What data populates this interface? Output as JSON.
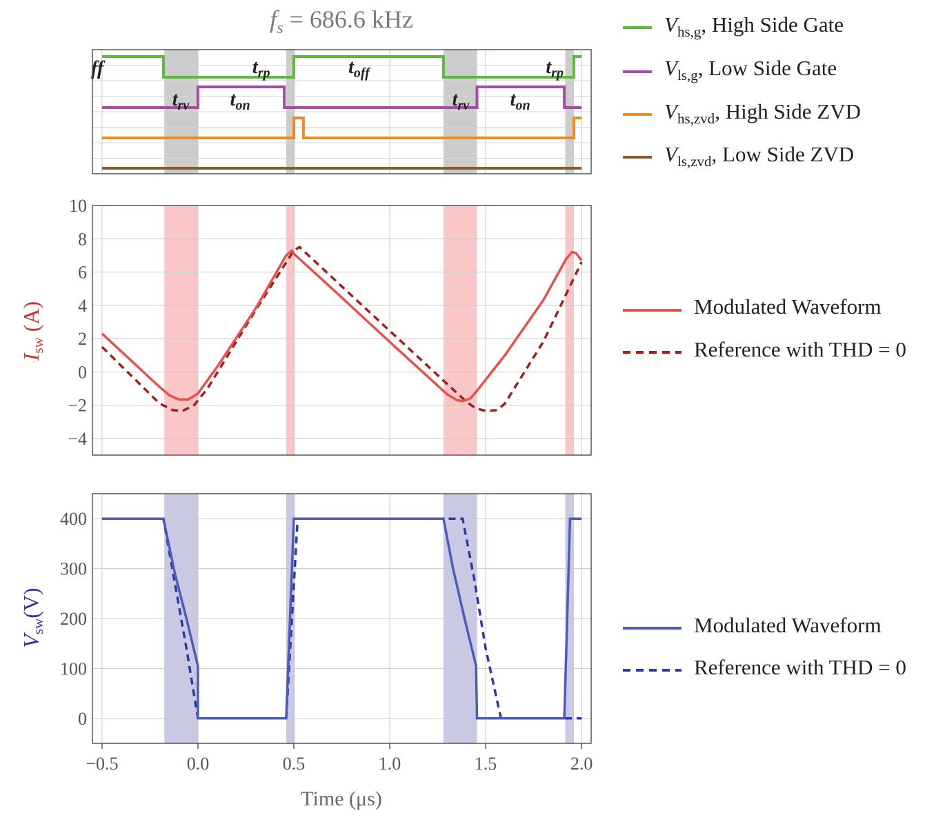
{
  "title": {
    "var": "f",
    "sub": "s",
    "rest": " = 686.6 kHz"
  },
  "colors": {
    "hs_gate": "#5dbb3c",
    "ls_gate": "#a64ca6",
    "hs_zvd": "#f08a24",
    "ls_zvd": "#8b5a2b",
    "current": "#e8504a",
    "current_ref": "#a0201c",
    "voltage": "#4c5cb8",
    "voltage_ref": "#2b3aa8",
    "gray_band": "#cccccc",
    "red_band": "#f9c7c7",
    "blue_band": "#c9c9e3"
  },
  "gate_panel": {
    "labels": [
      {
        "main": "t",
        "sub": "rv",
        "x": -0.09,
        "row": "ls"
      },
      {
        "main": "t",
        "sub": "on",
        "x": 0.22,
        "row": "ls"
      },
      {
        "main": "t",
        "sub": "rp",
        "x": 0.33,
        "row": "hs"
      },
      {
        "main": "t",
        "sub": "off",
        "x": 0.84,
        "row": "hs"
      },
      {
        "main": "t",
        "sub": "rv",
        "x": 1.37,
        "row": "ls"
      },
      {
        "main": "t",
        "sub": "on",
        "x": 1.68,
        "row": "ls"
      },
      {
        "main": "t",
        "sub": "rp",
        "x": 1.86,
        "row": "hs"
      }
    ],
    "clipped_label": "ff"
  },
  "chart_data": [
    {
      "type": "line",
      "name": "gate_signals",
      "xlim": [
        -0.55,
        2.05
      ],
      "shaded_intervals": [
        [
          -0.175,
          0.0
        ],
        [
          0.46,
          0.505
        ],
        [
          1.28,
          1.455
        ],
        [
          1.915,
          1.96
        ]
      ],
      "series": [
        {
          "name": "V_hs,g, High Side Gate",
          "level_high": 1,
          "x": [
            -0.5,
            -0.18,
            -0.18,
            0.5,
            0.5,
            1.28,
            1.28,
            1.96,
            1.96,
            2.0
          ],
          "y": [
            1,
            1,
            0,
            0,
            1,
            1,
            0,
            0,
            1,
            1
          ]
        },
        {
          "name": "V_ls,g, Low Side Gate",
          "x": [
            -0.5,
            0.0,
            0.0,
            0.45,
            0.45,
            1.455,
            1.455,
            1.91,
            1.91,
            2.0
          ],
          "y": [
            0,
            0,
            1,
            1,
            0,
            0,
            1,
            1,
            0,
            0
          ]
        },
        {
          "name": "V_hs,zvd, High Side ZVD",
          "x": [
            -0.5,
            0.5,
            0.5,
            0.55,
            0.55,
            1.96,
            1.96,
            2.0
          ],
          "y": [
            0,
            0,
            1,
            1,
            0,
            0,
            1,
            1
          ]
        },
        {
          "name": "V_ls,zvd, Low Side ZVD",
          "x": [
            -0.5,
            2.0
          ],
          "y": [
            0,
            0
          ]
        }
      ]
    },
    {
      "type": "line",
      "name": "switch_current",
      "ylabel": "I_sw (A)",
      "xlim": [
        -0.55,
        2.05
      ],
      "ylim": [
        -5,
        10
      ],
      "yticks": [
        10,
        8,
        6,
        4,
        2,
        0,
        -2,
        -4
      ],
      "ytick_labels": [
        "10",
        "8",
        "6",
        "4",
        "2",
        "0",
        "−2",
        "−4"
      ],
      "shaded_intervals": [
        [
          -0.175,
          0.0
        ],
        [
          0.46,
          0.505
        ],
        [
          1.28,
          1.455
        ],
        [
          1.915,
          1.96
        ]
      ],
      "series": [
        {
          "name": "Modulated Waveform",
          "style": "solid",
          "x": [
            -0.5,
            -0.2,
            -0.15,
            -0.1,
            -0.05,
            0.0,
            0.1,
            0.3,
            0.46,
            0.49,
            0.5,
            0.7,
            1.0,
            1.3,
            1.35,
            1.38,
            1.42,
            1.45,
            1.6,
            1.8,
            1.92,
            1.95,
            1.97,
            2.0
          ],
          "y": [
            2.3,
            -0.9,
            -1.4,
            -1.65,
            -1.65,
            -1.3,
            0.3,
            3.8,
            7.0,
            7.3,
            7.1,
            5.0,
            1.8,
            -1.35,
            -1.7,
            -1.75,
            -1.6,
            -1.2,
            1.0,
            4.3,
            6.8,
            7.2,
            7.15,
            6.7
          ]
        },
        {
          "name": "Reference with THD = 0",
          "style": "dashed",
          "x": [
            -0.5,
            -0.2,
            -0.13,
            -0.08,
            -0.02,
            0.05,
            0.3,
            0.5,
            0.53,
            0.8,
            1.1,
            1.4,
            1.45,
            1.5,
            1.56,
            1.6,
            1.8,
            2.0
          ],
          "y": [
            1.5,
            -1.9,
            -2.3,
            -2.35,
            -2.0,
            -1.0,
            3.7,
            7.3,
            7.5,
            4.6,
            1.4,
            -1.8,
            -2.2,
            -2.35,
            -2.3,
            -1.9,
            1.8,
            6.6
          ]
        }
      ]
    },
    {
      "type": "line",
      "name": "switch_voltage",
      "ylabel": "V_sw(V)",
      "xlabel": "Time (μs)",
      "xlim": [
        -0.55,
        2.05
      ],
      "ylim": [
        -50,
        450
      ],
      "yticks": [
        400,
        300,
        200,
        100,
        0
      ],
      "xticks": [
        -0.5,
        0.0,
        0.5,
        1.0,
        1.5,
        2.0
      ],
      "xtick_labels": [
        "−0.5",
        "0.0",
        "0.5",
        "1.0",
        "1.5",
        "2.0"
      ],
      "shaded_intervals": [
        [
          -0.175,
          0.0
        ],
        [
          0.46,
          0.505
        ],
        [
          1.28,
          1.455
        ],
        [
          1.915,
          1.96
        ]
      ],
      "series": [
        {
          "name": "Modulated Waveform",
          "style": "solid",
          "x": [
            -0.5,
            -0.18,
            -0.12,
            -0.06,
            0.0,
            0.0,
            0.46,
            0.46,
            0.5,
            1.28,
            1.33,
            1.39,
            1.45,
            1.455,
            1.91,
            1.91,
            1.94,
            1.96,
            2.0
          ],
          "y": [
            400,
            400,
            290,
            200,
            105,
            0,
            0,
            0,
            400,
            400,
            300,
            200,
            105,
            0,
            0,
            0,
            400,
            400,
            400
          ]
        },
        {
          "name": "Reference with THD = 0",
          "style": "dashed",
          "x": [
            -0.5,
            -0.18,
            -0.12,
            -0.06,
            0.0,
            0.0,
            0.46,
            0.52,
            1.36,
            1.38,
            1.44,
            1.5,
            1.58,
            2.0
          ],
          "y": [
            400,
            400,
            270,
            140,
            0,
            0,
            0,
            400,
            400,
            400,
            280,
            140,
            0,
            0
          ]
        }
      ]
    }
  ],
  "legends": {
    "gates": [
      {
        "main": "V",
        "sub": "hs,g",
        "text": ", High Side Gate"
      },
      {
        "main": "V",
        "sub": "ls,g",
        "text": ", Low Side Gate"
      },
      {
        "main": "V",
        "sub": "hs,zvd",
        "text": ", High Side ZVD"
      },
      {
        "main": "V",
        "sub": "ls,zvd",
        "text": ", Low Side ZVD"
      }
    ],
    "current": [
      "Modulated Waveform",
      "Reference with THD = 0"
    ],
    "voltage": [
      "Modulated Waveform",
      "Reference with THD = 0"
    ]
  },
  "axis_titles": {
    "current": {
      "main": "I",
      "sub": "sw",
      "unit": " (A)"
    },
    "voltage": {
      "main": "V",
      "sub": "sw",
      "unit": "(V)"
    },
    "time": "Time (μs)"
  }
}
